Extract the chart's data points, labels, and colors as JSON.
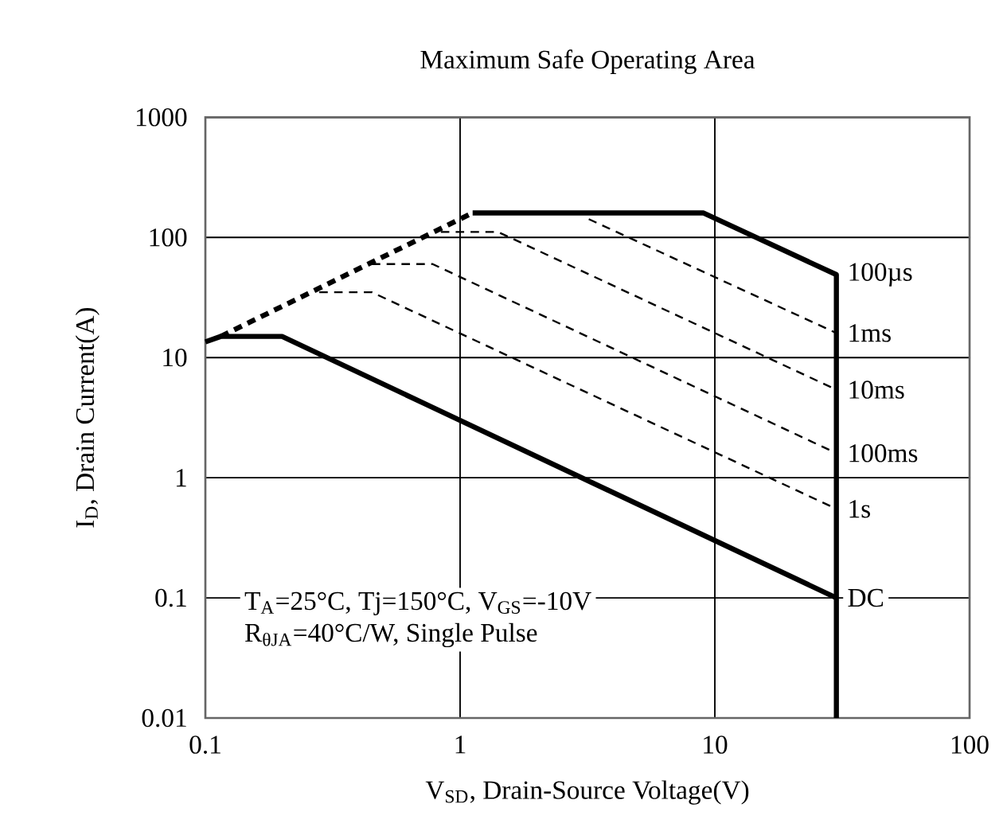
{
  "chart_data": {
    "type": "line",
    "title": "Maximum Safe Operating Area",
    "xlabel": "V$_{SD}$, Drain-Source Voltage(V)",
    "ylabel": "I$_{D}$, Drain Current(A)",
    "log": "xy",
    "grid": true,
    "xlim": [
      0.1,
      100
    ],
    "ylim": [
      0.01,
      1000
    ],
    "xticks": [
      0.1,
      1,
      10,
      100
    ],
    "yticks": [
      0.01,
      0.1,
      1,
      10,
      100,
      1000
    ],
    "annotations": [
      "T$_{A}$=25°C, Tj=150°C, V$_{GS}$=-10V",
      "R$_{θJA}$=40°C/W, Single Pulse"
    ],
    "series": [
      {
        "name": "100µs",
        "color": "#000000",
        "line_style": "solid",
        "x": [
          1.12,
          9,
          30,
          30
        ],
        "values": [
          160,
          160,
          49,
          0.01
        ]
      },
      {
        "name": "1ms",
        "color": "#000000",
        "line_style": "dashed",
        "x": [
          3.2,
          30
        ],
        "values": [
          142,
          16
        ]
      },
      {
        "name": "10ms",
        "color": "#000000",
        "line_style": "dashed",
        "x": [
          0.84,
          1.41,
          30
        ],
        "values": [
          111,
          111,
          5.4
        ]
      },
      {
        "name": "100ms",
        "color": "#000000",
        "line_style": "dashed",
        "x": [
          0.45,
          0.78,
          30
        ],
        "values": [
          60,
          60,
          1.6
        ]
      },
      {
        "name": "1s",
        "color": "#000000",
        "line_style": "dashed",
        "x": [
          0.28,
          0.45,
          30
        ],
        "values": [
          35,
          35,
          0.55
        ]
      },
      {
        "name": "DC",
        "color": "#000000",
        "line_style": "solid",
        "x": [
          0.1,
          0.115,
          0.2,
          30
        ],
        "values": [
          13.5,
          15,
          15,
          0.1
        ]
      },
      {
        "color": "#000000",
        "line_style": "dashed",
        "x": [
          0.115,
          1.12
        ],
        "values": [
          15,
          160
        ]
      }
    ]
  }
}
